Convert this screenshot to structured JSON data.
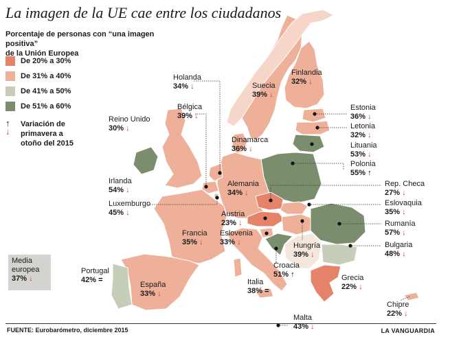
{
  "title": "La imagen de la UE cae entre los ciudadanos",
  "subtitle_line1": "Porcentaje de personas con “una imagen positiva”",
  "subtitle_line2": "de la Unión Europea",
  "legend": [
    {
      "label": "De 20% a 30%",
      "color": "#e5836a"
    },
    {
      "label": "De 31% a 40%",
      "color": "#efb09a"
    },
    {
      "label": "De 41% a 50%",
      "color": "#c6cdb8"
    },
    {
      "label": "De 51% a 60%",
      "color": "#7a8e6d"
    }
  ],
  "legend_arrows_label": "Variación de primavera a otoño del 2015",
  "arrow_up": "↑",
  "arrow_down": "↓",
  "average": {
    "label_line1": "Media",
    "label_line2": "europea",
    "value": "37%",
    "arrow": "↓"
  },
  "countries": [
    {
      "name": "Holanda",
      "value": "34%",
      "arrow": "↓"
    },
    {
      "name": "Bélgica",
      "value": "39%",
      "arrow": "↓"
    },
    {
      "name": "Reino Unido",
      "value": "30%",
      "arrow": "↓"
    },
    {
      "name": "Irlanda",
      "value": "54%",
      "arrow": "↓"
    },
    {
      "name": "Luxemburgo",
      "value": "45%",
      "arrow": "↓"
    },
    {
      "name": "Suecia",
      "value": "39%",
      "arrow": "↓"
    },
    {
      "name": "Finlandia",
      "value": "32%",
      "arrow": "↓"
    },
    {
      "name": "Dinamarca",
      "value": "36%",
      "arrow": "↓"
    },
    {
      "name": "Estonia",
      "value": "36%",
      "arrow": "↓"
    },
    {
      "name": "Letonia",
      "value": "32%",
      "arrow": "↓"
    },
    {
      "name": "Lituania",
      "value": "53%",
      "arrow": "↓"
    },
    {
      "name": "Polonia",
      "value": "55%",
      "arrow": "↑"
    },
    {
      "name": "Alemania",
      "value": "34%",
      "arrow": "↓"
    },
    {
      "name": "Rep. Checa",
      "value": "27%",
      "arrow": "↓"
    },
    {
      "name": "Eslovaquia",
      "value": "35%",
      "arrow": "↓"
    },
    {
      "name": "Austria",
      "value": "23%",
      "arrow": "↓"
    },
    {
      "name": "Eslovenia",
      "value": "33%",
      "arrow": "↓"
    },
    {
      "name": "Francia",
      "value": "35%",
      "arrow": "↓"
    },
    {
      "name": "Rumanía",
      "value": "57%",
      "arrow": "↓"
    },
    {
      "name": "Hungría",
      "value": "39%",
      "arrow": "↓"
    },
    {
      "name": "Bulgaria",
      "value": "48%",
      "arrow": "↓"
    },
    {
      "name": "Croacia",
      "value": "51%",
      "arrow": "↑"
    },
    {
      "name": "Portugal",
      "value": "42%",
      "arrow": "="
    },
    {
      "name": "España",
      "value": "33%",
      "arrow": "↓"
    },
    {
      "name": "Italia",
      "value": "38%",
      "arrow": "="
    },
    {
      "name": "Grecia",
      "value": "22%",
      "arrow": "↓"
    },
    {
      "name": "Chipre",
      "value": "22%",
      "arrow": "↓"
    },
    {
      "name": "Malta",
      "value": "43%",
      "arrow": "↓"
    }
  ],
  "source": "FUENTE: Eurobarómetro, diciembre 2015",
  "brand": "LA VANGUARDIA"
}
